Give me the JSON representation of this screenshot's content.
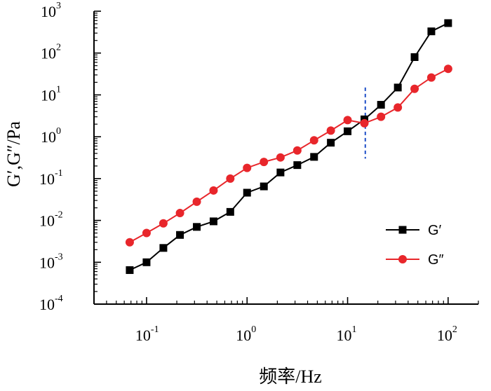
{
  "chart_data": {
    "type": "line",
    "xscale": "log",
    "yscale": "log",
    "xlim": [
      0.03,
      200
    ],
    "ylim": [
      0.0001,
      1000
    ],
    "x_ticks": [
      {
        "value": 0.1,
        "base": "10",
        "exp": "-1"
      },
      {
        "value": 1,
        "base": "10",
        "exp": "0"
      },
      {
        "value": 10,
        "base": "10",
        "exp": "1"
      },
      {
        "value": 100,
        "base": "10",
        "exp": "2"
      }
    ],
    "y_ticks": [
      {
        "value": 0.0001,
        "base": "10",
        "exp": "-4"
      },
      {
        "value": 0.001,
        "base": "10",
        "exp": "-3"
      },
      {
        "value": 0.01,
        "base": "10",
        "exp": "-2"
      },
      {
        "value": 0.1,
        "base": "10",
        "exp": "-1"
      },
      {
        "value": 1,
        "base": "10",
        "exp": "0"
      },
      {
        "value": 10,
        "base": "10",
        "exp": "1"
      },
      {
        "value": 100,
        "base": "10",
        "exp": "2"
      },
      {
        "value": 1000,
        "base": "10",
        "exp": "3"
      }
    ],
    "xlabel": "频率/Hz",
    "ylabel": "G′,G″/Pa",
    "legend_position": "right-middle",
    "reference_line": {
      "x": 15,
      "y_range": [
        0.3,
        15
      ],
      "color": "#1f4fc8",
      "style": "dashed"
    },
    "series": [
      {
        "name": "G′",
        "color": "#000000",
        "marker": "square",
        "x": [
          0.068,
          0.1,
          0.147,
          0.215,
          0.316,
          0.464,
          0.681,
          1.0,
          1.47,
          2.15,
          3.16,
          4.64,
          6.81,
          10,
          14.7,
          21.5,
          31.6,
          46.4,
          68.1,
          100
        ],
        "values": [
          0.00065,
          0.001,
          0.0022,
          0.0045,
          0.007,
          0.0095,
          0.016,
          0.046,
          0.065,
          0.14,
          0.21,
          0.33,
          0.72,
          1.35,
          2.6,
          5.8,
          15,
          80,
          330,
          520
        ]
      },
      {
        "name": "G″",
        "color": "#e8262b",
        "marker": "circle",
        "x": [
          0.068,
          0.1,
          0.147,
          0.215,
          0.316,
          0.464,
          0.681,
          1.0,
          1.47,
          2.15,
          3.16,
          4.64,
          6.81,
          10,
          14.7,
          21.5,
          31.6,
          46.4,
          68.1,
          100
        ],
        "values": [
          0.003,
          0.005,
          0.0085,
          0.015,
          0.028,
          0.052,
          0.1,
          0.18,
          0.25,
          0.32,
          0.47,
          0.82,
          1.4,
          2.5,
          2.1,
          3.0,
          5.0,
          14,
          26,
          42
        ]
      }
    ]
  }
}
